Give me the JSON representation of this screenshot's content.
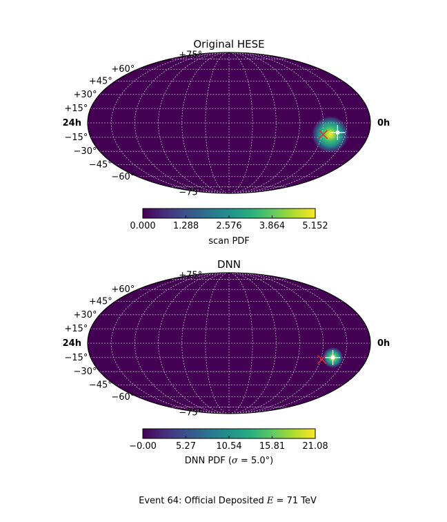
{
  "caption": "Event 64:  Official Deposited E = 71 TeV",
  "caption_parts": {
    "prefix": "Event 64:  Official Deposited ",
    "var": "E",
    "op": " = ",
    "value": "71",
    "unit": " TeV"
  },
  "hour_labels": {
    "left": "24h",
    "right": "0h"
  },
  "declination_labels": [
    "+75°",
    "+60°",
    "+45°",
    "+30°",
    "+15°",
    "−15°",
    "−30°",
    "−45°",
    "−60°",
    "−75°"
  ],
  "declination_values": [
    75,
    60,
    45,
    30,
    15,
    -15,
    -30,
    -45,
    -60,
    -75
  ],
  "colors": {
    "background": "#440154",
    "grid": "#d9d0e0",
    "truth_marker": "#ff2020",
    "best_fit_marker": "#ffffff",
    "outline": "#000000"
  },
  "chart_data": [
    {
      "type": "heatmap",
      "projection": "mollweide",
      "colormap": "viridis",
      "title": "Original HESE",
      "colorbar": {
        "label": "scan PDF",
        "range": [
          0.0,
          5.152
        ],
        "ticks": [
          0.0,
          1.288,
          2.576,
          3.864,
          5.152
        ],
        "tick_labels": [
          "0.000",
          "1.288",
          "2.576",
          "3.864",
          "5.152"
        ]
      },
      "hotspot": {
        "ra_hours": 3.3,
        "dec_deg": -12,
        "peak": 5.152,
        "width_deg": 10
      },
      "truth_marker": {
        "ra_hours": 3.9,
        "dec_deg": -12
      },
      "best_fit_marker": {
        "ra_hours": 2.7,
        "dec_deg": -10
      },
      "grid": true
    },
    {
      "type": "heatmap",
      "projection": "mollweide",
      "colormap": "viridis",
      "title": "DNN",
      "colorbar": {
        "label": "DNN PDF (σ = 5.0°)",
        "label_parts": {
          "prefix": "DNN PDF (",
          "var": "σ",
          "op": " = ",
          "value": "5.0°",
          "suffix": ")"
        },
        "range": [
          0.0,
          21.08
        ],
        "ticks": [
          0.0,
          5.27,
          10.54,
          15.81,
          21.08
        ],
        "tick_labels": [
          "−0.00",
          "5.27",
          "10.54",
          "15.81",
          "21.08"
        ]
      },
      "hotspot": {
        "ra_hours": 3.0,
        "dec_deg": -15,
        "peak": 21.08,
        "width_deg": 5
      },
      "truth_marker": {
        "ra_hours": 3.9,
        "dec_deg": -17
      },
      "best_fit_marker": {
        "ra_hours": 3.0,
        "dec_deg": -15
      },
      "grid": true
    }
  ]
}
